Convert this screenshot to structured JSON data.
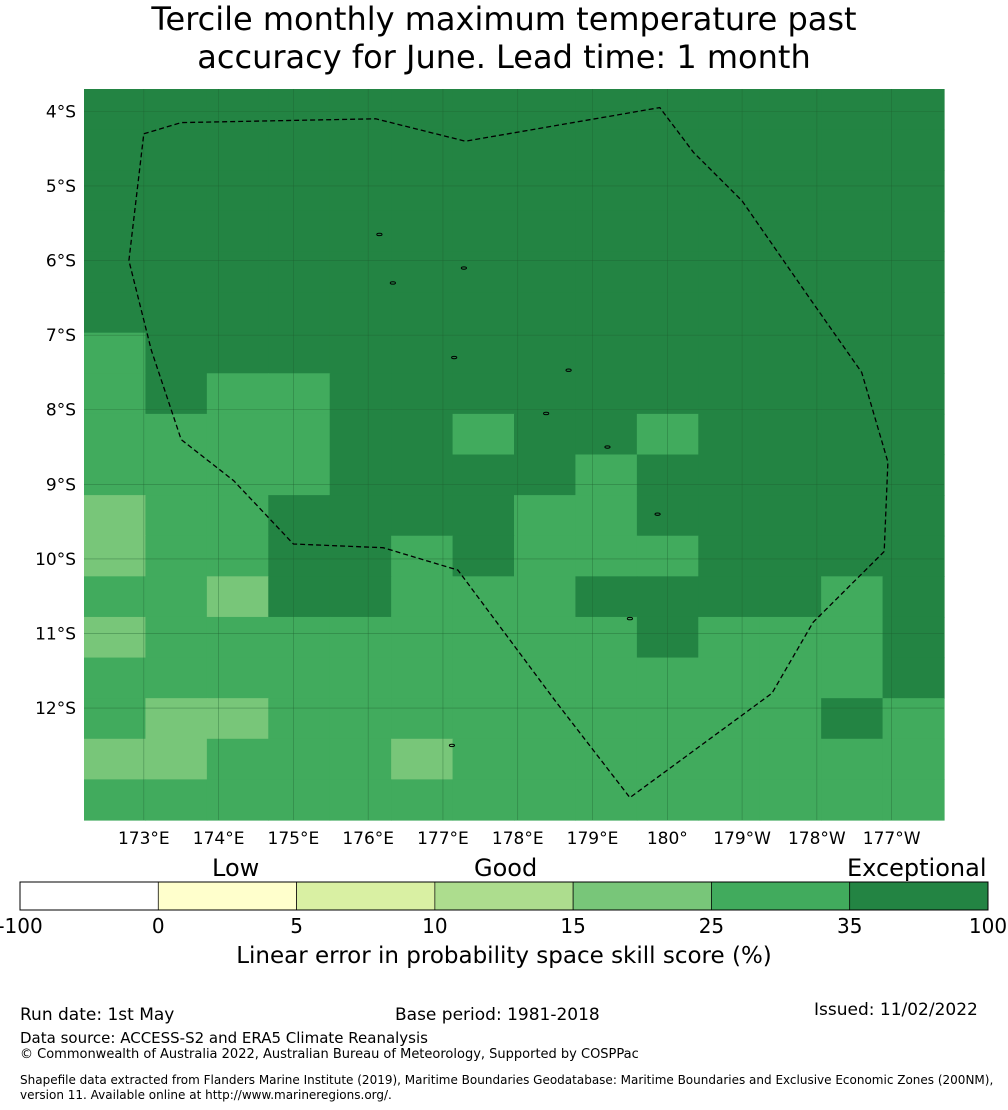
{
  "title": {
    "line1": "Tercile monthly maximum temperature past",
    "line2": "accuracy for June. Lead time: 1 month"
  },
  "map": {
    "lat_ticks": [
      "4°S",
      "5°S",
      "6°S",
      "7°S",
      "8°S",
      "9°S",
      "10°S",
      "11°S",
      "12°S"
    ],
    "lon_ticks": [
      "173°E",
      "174°E",
      "175°E",
      "176°E",
      "177°E",
      "178°E",
      "179°E",
      "180°",
      "179°W",
      "178°W",
      "177°W"
    ],
    "lon_extent_deg_east": [
      172.2,
      183.7
    ],
    "lat_extent_deg": [
      -3.7,
      -13.5
    ],
    "grid_resolution_deg_lon": 0.83,
    "grid_resolution_deg_lat": 0.55,
    "skill_grid_pct": [
      [
        40,
        40,
        40,
        40,
        40,
        40,
        40,
        40,
        40,
        40,
        40,
        40,
        40,
        40
      ],
      [
        40,
        40,
        40,
        40,
        40,
        40,
        40,
        40,
        40,
        40,
        40,
        40,
        40,
        40
      ],
      [
        40,
        40,
        40,
        40,
        40,
        40,
        40,
        40,
        40,
        40,
        40,
        40,
        40,
        40
      ],
      [
        40,
        40,
        40,
        40,
        40,
        40,
        40,
        40,
        40,
        40,
        40,
        40,
        40,
        40
      ],
      [
        40,
        40,
        40,
        40,
        40,
        40,
        40,
        40,
        40,
        40,
        40,
        40,
        40,
        40
      ],
      [
        40,
        40,
        40,
        40,
        40,
        40,
        40,
        40,
        40,
        40,
        40,
        40,
        40,
        40
      ],
      [
        30,
        40,
        40,
        40,
        40,
        40,
        40,
        40,
        40,
        40,
        40,
        40,
        40,
        40
      ],
      [
        30,
        40,
        30,
        30,
        40,
        40,
        40,
        40,
        40,
        40,
        40,
        40,
        40,
        40
      ],
      [
        30,
        30,
        30,
        30,
        40,
        40,
        30,
        40,
        40,
        30,
        40,
        40,
        40,
        40
      ],
      [
        30,
        30,
        30,
        30,
        40,
        40,
        40,
        40,
        30,
        40,
        40,
        40,
        40,
        40
      ],
      [
        20,
        30,
        30,
        40,
        40,
        40,
        40,
        30,
        30,
        40,
        40,
        40,
        40,
        40
      ],
      [
        20,
        30,
        30,
        40,
        40,
        30,
        40,
        30,
        30,
        30,
        40,
        40,
        40,
        40
      ],
      [
        30,
        30,
        20,
        40,
        40,
        30,
        30,
        30,
        40,
        40,
        40,
        40,
        30,
        40
      ],
      [
        20,
        30,
        30,
        30,
        30,
        30,
        30,
        30,
        30,
        40,
        30,
        30,
        30,
        40
      ],
      [
        30,
        30,
        30,
        30,
        30,
        30,
        30,
        30,
        30,
        30,
        30,
        30,
        30,
        40
      ],
      [
        30,
        20,
        20,
        30,
        30,
        30,
        30,
        30,
        30,
        30,
        30,
        30,
        40,
        30
      ],
      [
        20,
        20,
        30,
        30,
        30,
        20,
        30,
        30,
        30,
        30,
        30,
        30,
        30,
        30
      ],
      [
        30,
        30,
        30,
        30,
        30,
        30,
        30,
        30,
        30,
        30,
        30,
        30,
        30,
        30
      ]
    ],
    "eez_boundary_lonlat": [
      [
        173.0,
        -4.3
      ],
      [
        173.5,
        -4.15
      ],
      [
        176.1,
        -4.1
      ],
      [
        177.3,
        -4.4
      ],
      [
        179.9,
        -3.95
      ],
      [
        180.35,
        -4.55
      ],
      [
        181.0,
        -5.2
      ],
      [
        181.9,
        -6.5
      ],
      [
        182.6,
        -7.5
      ],
      [
        182.95,
        -8.7
      ],
      [
        182.9,
        -9.9
      ],
      [
        181.95,
        -10.85
      ],
      [
        181.4,
        -11.8
      ],
      [
        179.5,
        -13.2
      ],
      [
        178.5,
        -11.9
      ],
      [
        177.2,
        -10.15
      ],
      [
        176.2,
        -9.85
      ],
      [
        175.0,
        -9.8
      ],
      [
        174.2,
        -8.95
      ],
      [
        173.5,
        -8.4
      ],
      [
        173.1,
        -7.2
      ],
      [
        172.8,
        -6.0
      ],
      [
        173.0,
        -4.3
      ]
    ],
    "islands_lonlat": [
      [
        176.15,
        -5.65
      ],
      [
        177.28,
        -6.1
      ],
      [
        176.33,
        -6.3
      ],
      [
        177.15,
        -7.3
      ],
      [
        178.68,
        -7.47
      ],
      [
        178.38,
        -8.05
      ],
      [
        179.2,
        -8.5
      ],
      [
        179.87,
        -9.4
      ],
      [
        179.5,
        -10.8
      ],
      [
        177.12,
        -12.5
      ]
    ]
  },
  "colorbar": {
    "categories": [
      "Low",
      "Good",
      "Exceptional"
    ],
    "tick_labels": [
      "-100",
      "0",
      "5",
      "10",
      "15",
      "25",
      "35",
      "100"
    ],
    "colors": [
      "#ffffff",
      "#ffffcc",
      "#d9f0a3",
      "#addd8e",
      "#78c679",
      "#41ab5d",
      "#238443"
    ],
    "label": "Linear error in probability space skill score (%)"
  },
  "footer": {
    "run_date": "Run date: 1st May",
    "base_period": "Base period: 1981-2018",
    "issued": "Issued: 11/02/2022",
    "data_source": "Data source: ACCESS-S2 and ERA5 Climate Reanalysis",
    "copyright": "© Commonwealth of Australia 2022, Australian Bureau of Meteorology, Supported by COSPPac",
    "shapefile": "Shapefile data extracted from Flanders Marine Institute (2019), Maritime Boundaries Geodatabase: Maritime Boundaries and Exclusive Economic Zones (200NM), version 11. Available online at http://www.marineregions.org/."
  }
}
